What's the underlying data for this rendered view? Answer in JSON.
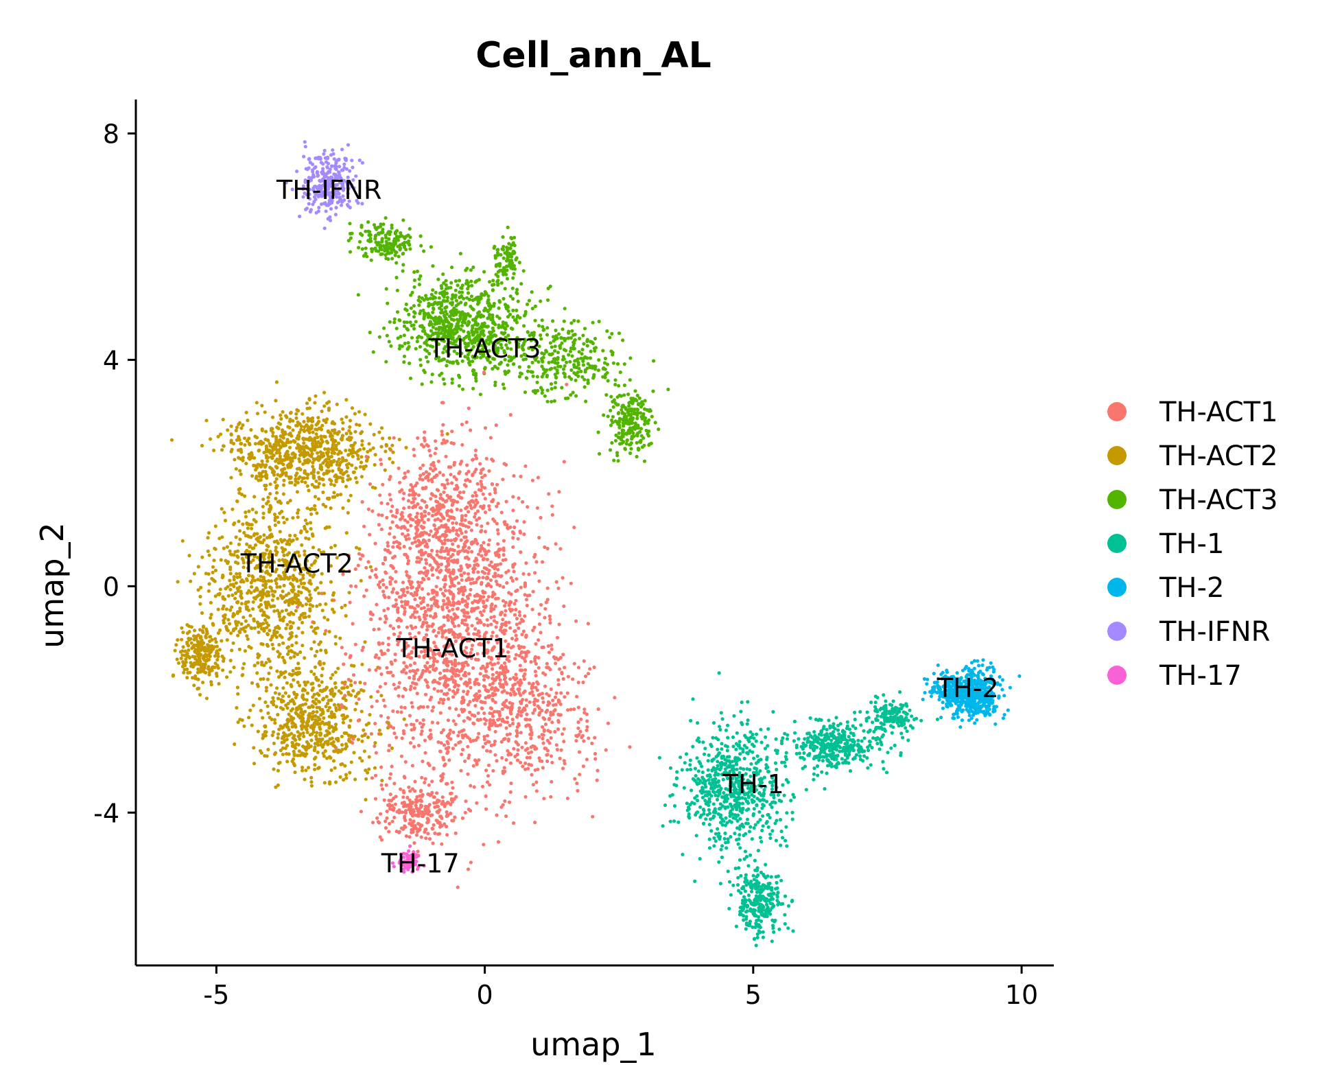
{
  "chart_data": {
    "type": "scatter",
    "title": "Cell_ann_AL",
    "xlabel": "umap_1",
    "ylabel": "umap_2",
    "xlim": [
      -6.5,
      10.6
    ],
    "ylim": [
      -6.7,
      8.6
    ],
    "xticks": [
      -5,
      0,
      5,
      10
    ],
    "xtick_labels": [
      "-5",
      "0",
      "5",
      "10"
    ],
    "yticks": [
      -4,
      0,
      4,
      8
    ],
    "ytick_labels": [
      "-4",
      "0",
      "4",
      "8"
    ],
    "grid": false,
    "legend_position": "right",
    "series": [
      {
        "name": "TH-ACT1",
        "color": "#F8766D",
        "center": [
          -0.6,
          -0.8
        ],
        "label_pos": [
          -0.6,
          -1.1
        ],
        "blobs": [
          [
            -0.6,
            -0.6,
            1.6,
            2.4,
            0.55
          ],
          [
            0.6,
            -2.2,
            1.3,
            1.3,
            0.2
          ],
          [
            -0.8,
            1.3,
            1.0,
            1.2,
            0.15
          ],
          [
            -1.2,
            -4.0,
            0.7,
            0.5,
            0.1
          ]
        ]
      },
      {
        "name": "TH-ACT2",
        "color": "#C49A00",
        "center": [
          -3.6,
          0.4
        ],
        "label_pos": [
          -3.5,
          0.4
        ],
        "blobs": [
          [
            -3.4,
            2.4,
            1.3,
            0.7,
            0.3
          ],
          [
            -4.0,
            0.0,
            1.1,
            1.5,
            0.35
          ],
          [
            -3.2,
            -2.4,
            1.0,
            0.9,
            0.25
          ],
          [
            -5.3,
            -1.2,
            0.35,
            0.5,
            0.1
          ]
        ]
      },
      {
        "name": "TH-ACT3",
        "color": "#53B400",
        "center": [
          0.0,
          4.3
        ],
        "label_pos": [
          0.0,
          4.2
        ],
        "blobs": [
          [
            -0.4,
            4.6,
            1.1,
            0.8,
            0.5
          ],
          [
            1.5,
            4.0,
            1.0,
            0.6,
            0.2
          ],
          [
            2.7,
            2.9,
            0.4,
            0.5,
            0.15
          ],
          [
            0.4,
            5.8,
            0.2,
            0.4,
            0.05
          ],
          [
            -1.8,
            6.1,
            0.5,
            0.3,
            0.1
          ]
        ]
      },
      {
        "name": "TH-1",
        "color": "#00C094",
        "center": [
          5.0,
          -3.6
        ],
        "label_pos": [
          5.0,
          -3.5
        ],
        "blobs": [
          [
            4.6,
            -3.6,
            0.9,
            1.0,
            0.45
          ],
          [
            5.1,
            -5.6,
            0.4,
            0.5,
            0.2
          ],
          [
            6.5,
            -2.8,
            0.8,
            0.4,
            0.25
          ],
          [
            7.6,
            -2.3,
            0.4,
            0.25,
            0.1
          ]
        ]
      },
      {
        "name": "TH-2",
        "color": "#00B6EB",
        "center": [
          9.0,
          -1.9
        ],
        "label_pos": [
          9.0,
          -1.8
        ],
        "blobs": [
          [
            9.1,
            -1.9,
            0.45,
            0.4,
            0.8
          ],
          [
            8.6,
            -1.8,
            0.35,
            0.25,
            0.2
          ]
        ]
      },
      {
        "name": "TH-IFNR",
        "color": "#A58AFF",
        "center": [
          -2.9,
          7.0
        ],
        "label_pos": [
          -2.9,
          7.0
        ],
        "blobs": [
          [
            -2.9,
            7.1,
            0.45,
            0.5,
            1.0
          ]
        ]
      },
      {
        "name": "TH-17",
        "color": "#FB61D7",
        "center": [
          -1.4,
          -4.9
        ],
        "label_pos": [
          -1.2,
          -4.9
        ],
        "blobs": [
          [
            -1.4,
            -4.85,
            0.2,
            0.15,
            1.0
          ]
        ]
      }
    ],
    "point_counts": [
      2600,
      2300,
      1500,
      1400,
      600,
      280,
      70
    ]
  }
}
